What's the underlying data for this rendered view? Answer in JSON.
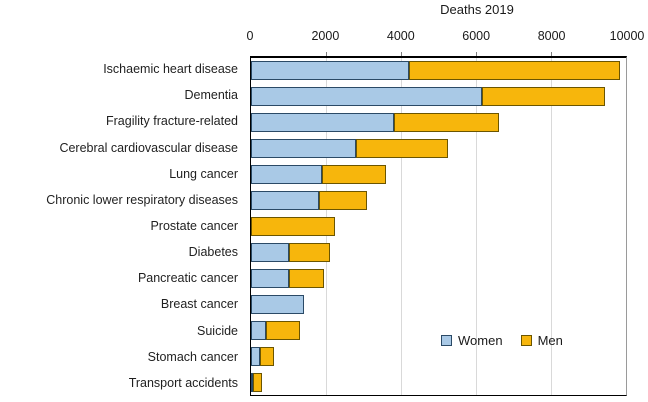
{
  "title": "Deaths 2019",
  "legend": {
    "women_label": "Women",
    "men_label": "Men"
  },
  "colors": {
    "women_fill": "#a9c9e6",
    "women_border": "#2b4a66",
    "men_fill": "#f7b60c",
    "men_border": "#6b5500",
    "gridline": "#d9d9d9",
    "axis_border": "#000000",
    "right_border": "#9a9a9a"
  },
  "chart_data": {
    "type": "bar",
    "orientation": "horizontal",
    "stacked": true,
    "title": "Deaths 2019",
    "categories": [
      "Ischaemic heart disease",
      "Dementia",
      "Fragility fracture-related",
      "Cerebral cardiovascular disease",
      "Lung cancer",
      "Chronic lower respiratory diseases",
      "Prostate cancer",
      "Diabetes",
      "Pancreatic cancer",
      "Breast cancer",
      "Suicide",
      "Stomach cancer",
      "Transport accidents"
    ],
    "series": [
      {
        "name": "Women",
        "values": [
          4200,
          6150,
          3800,
          2800,
          1900,
          1800,
          0,
          1000,
          1000,
          1400,
          400,
          250,
          50
        ]
      },
      {
        "name": "Men",
        "values": [
          5650,
          3300,
          2800,
          2450,
          1700,
          1300,
          2250,
          1100,
          950,
          0,
          900,
          350,
          250
        ]
      }
    ],
    "xlabel": "Deaths 2019",
    "xlim": [
      0,
      10000
    ],
    "xticks": [
      0,
      2000,
      4000,
      6000,
      8000,
      10000
    ],
    "grid": true,
    "legend_position": "inside-bottom-right"
  }
}
